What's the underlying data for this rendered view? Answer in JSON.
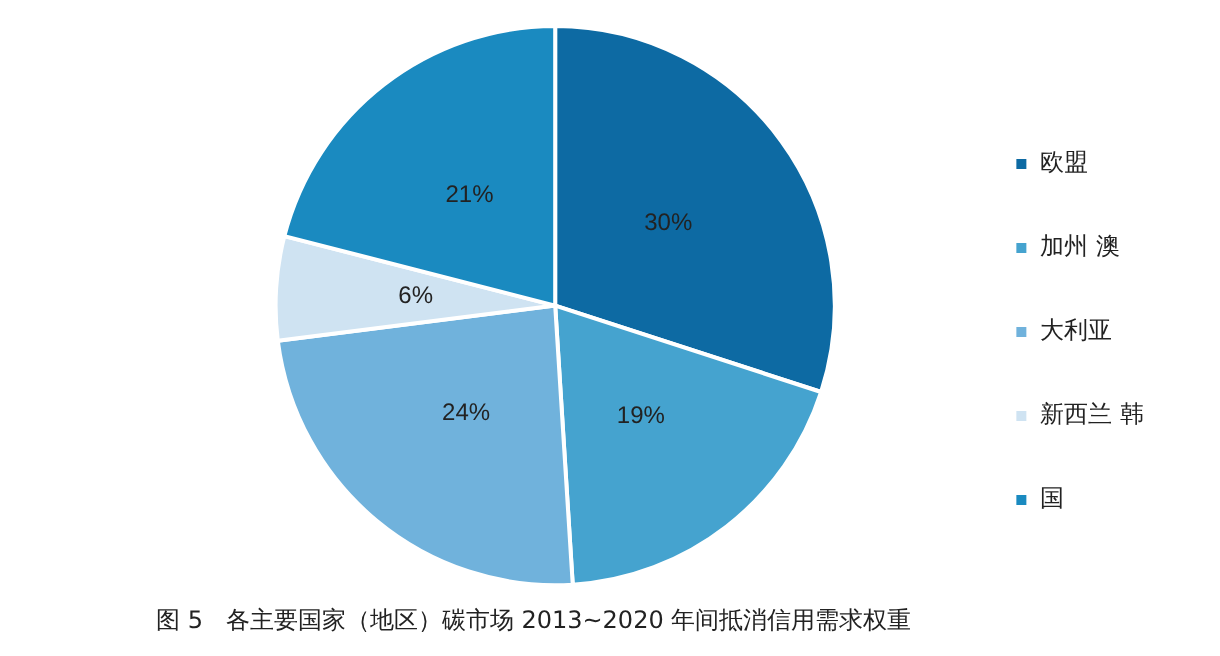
{
  "chart_data": {
    "type": "pie",
    "title": "图 5   各主要国家（地区）碳市场 2013~2020 年间抵消信用需求权重",
    "categories": [
      "欧盟",
      "加州 澳",
      "大利亚",
      "新西兰 韩",
      "国"
    ],
    "values": [
      30,
      19,
      24,
      6,
      21
    ],
    "value_labels": [
      "30%",
      "19%",
      "24%",
      "6%",
      "21%"
    ],
    "colors": [
      "#0d6aa3",
      "#45a3cf",
      "#70b2dc",
      "#cfe3f2",
      "#1a8ac0"
    ],
    "legend": "right"
  }
}
